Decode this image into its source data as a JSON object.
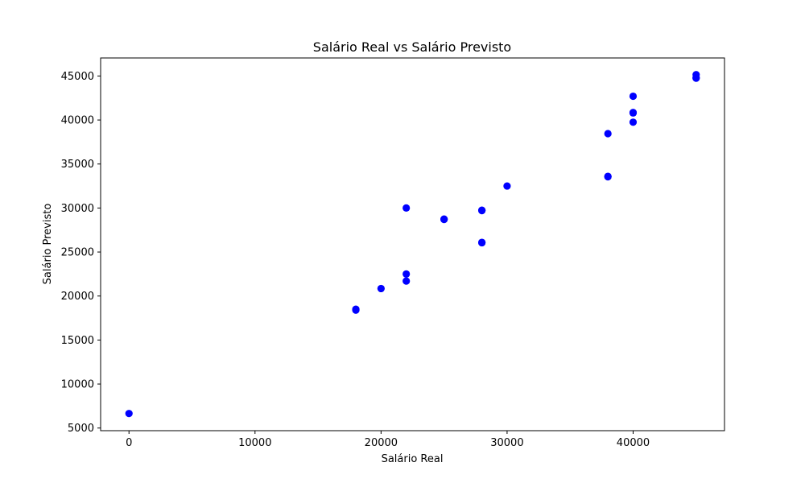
{
  "chart_data": {
    "type": "scatter",
    "title": "Salário Real vs Salário Previsto",
    "xlabel": "Salário Real",
    "ylabel": "Salário Previsto",
    "xlim": [
      -2250,
      47250
    ],
    "ylim": [
      4700,
      47050
    ],
    "x_ticks": [
      0,
      10000,
      20000,
      30000,
      40000
    ],
    "y_ticks": [
      5000,
      10000,
      15000,
      20000,
      25000,
      30000,
      35000,
      40000,
      45000
    ],
    "grid": false,
    "marker_color": "#0000ff",
    "series": [
      {
        "points": [
          [
            0,
            6650
          ],
          [
            18000,
            18500
          ],
          [
            18000,
            18400
          ],
          [
            20000,
            20850
          ],
          [
            22000,
            30000
          ],
          [
            22000,
            22500
          ],
          [
            22000,
            21700
          ],
          [
            25000,
            28700
          ],
          [
            25000,
            28750
          ],
          [
            28000,
            29700
          ],
          [
            28000,
            29750
          ],
          [
            28000,
            26050
          ],
          [
            28000,
            26100
          ],
          [
            30000,
            32500
          ],
          [
            38000,
            38450
          ],
          [
            38000,
            33600
          ],
          [
            38000,
            33550
          ],
          [
            40000,
            42700
          ],
          [
            40000,
            40850
          ],
          [
            40000,
            40800
          ],
          [
            40000,
            39750
          ],
          [
            45000,
            45150
          ],
          [
            45000,
            44800
          ],
          [
            45000,
            44750
          ]
        ]
      }
    ]
  }
}
